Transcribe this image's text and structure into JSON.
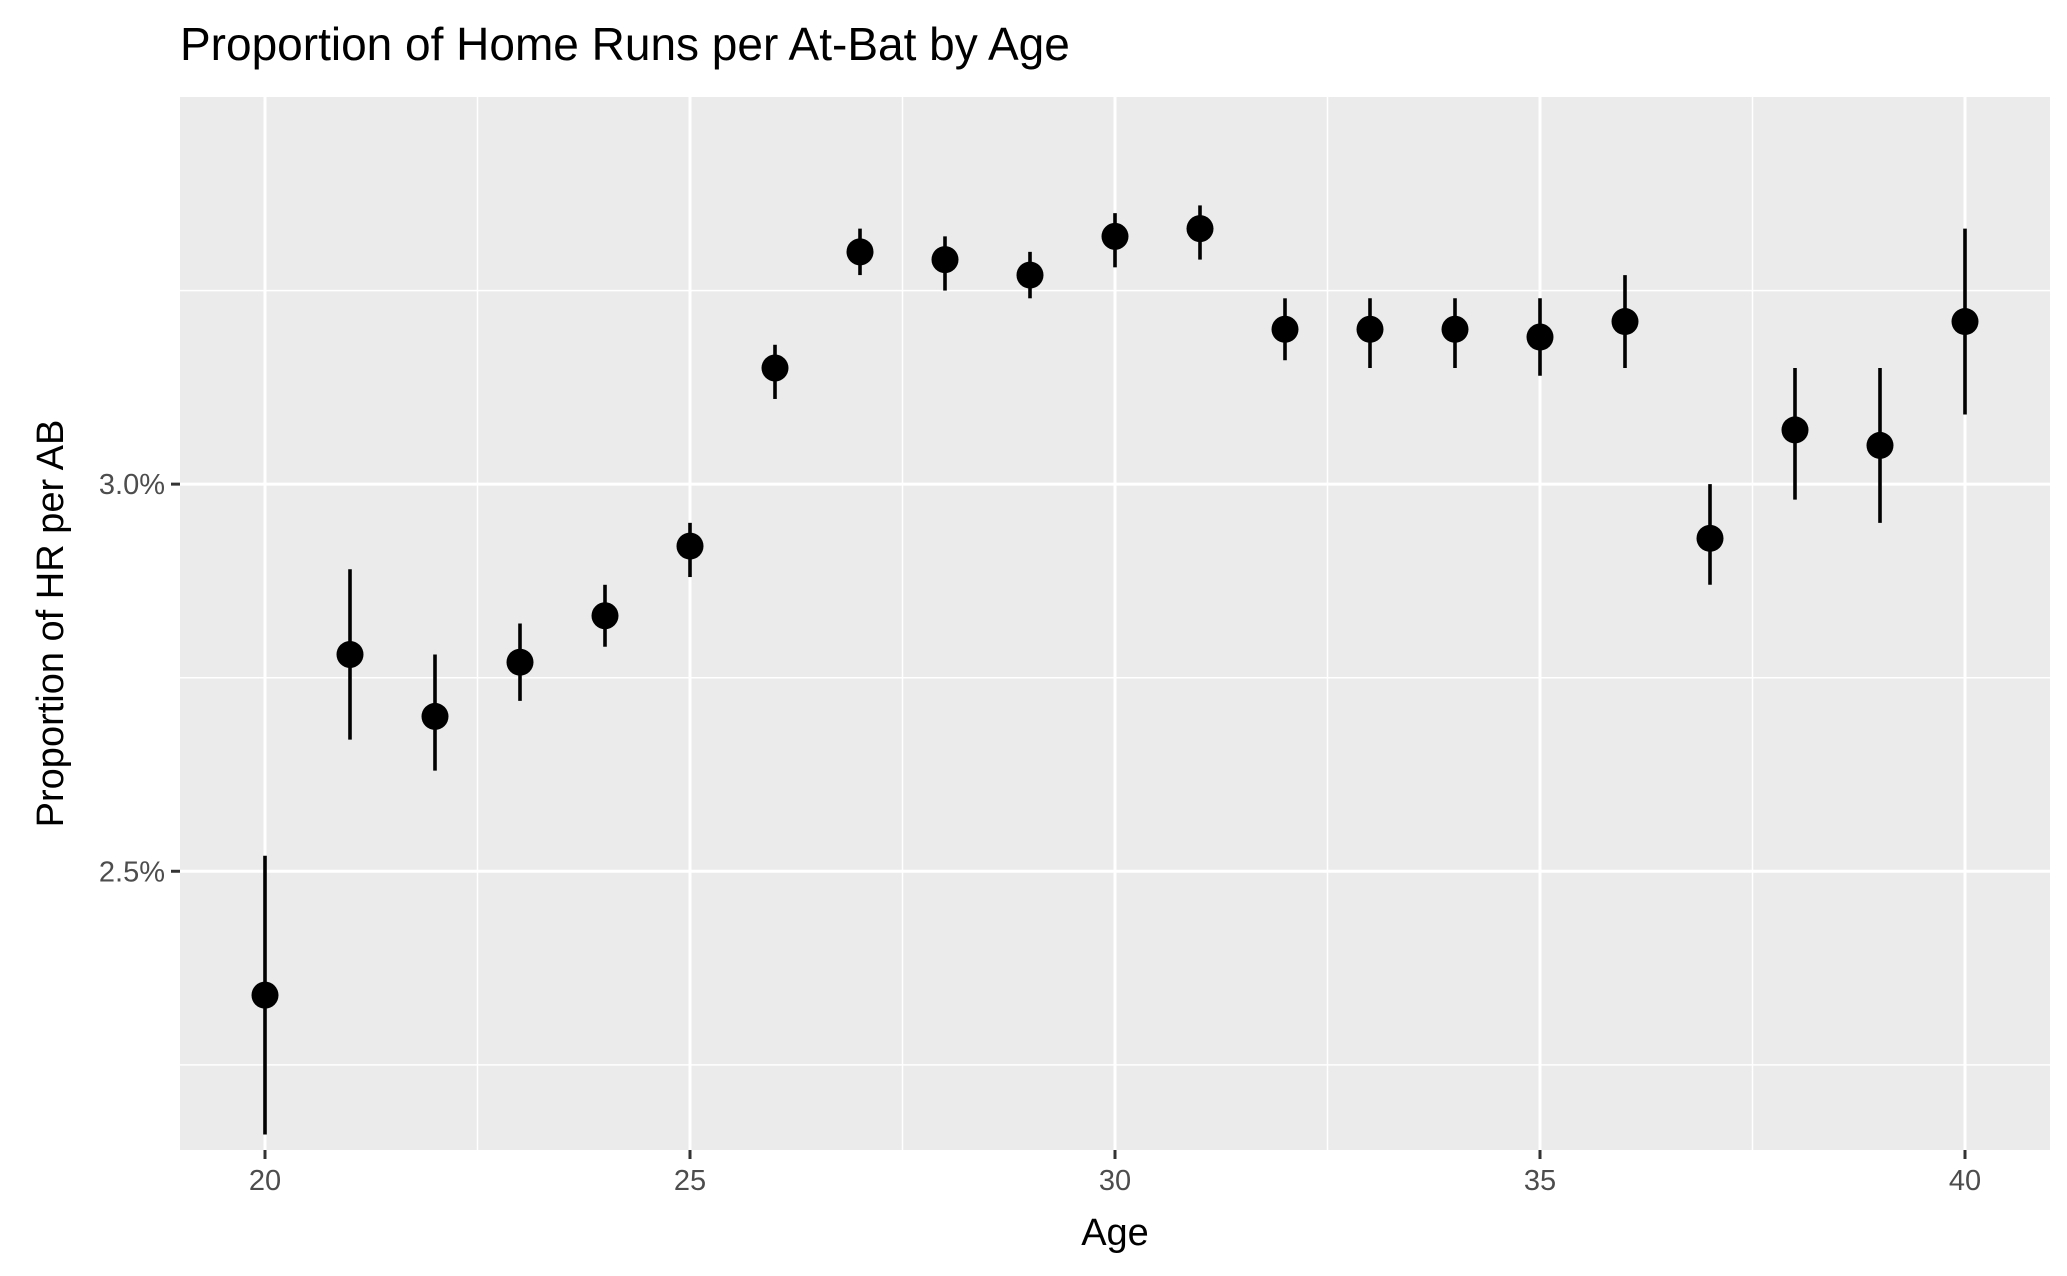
{
  "chart_data": {
    "type": "scatter",
    "title": "Proportion of Home Runs per At-Bat by Age",
    "xlabel": "Age",
    "ylabel": "Proportion of HR per AB",
    "xlim": [
      19,
      41
    ],
    "ylim": [
      2.14,
      3.5
    ],
    "x_ticks": [
      20,
      25,
      30,
      35,
      40
    ],
    "x_tick_labels": [
      "20",
      "25",
      "30",
      "35",
      "40"
    ],
    "y_ticks": [
      2.5,
      3.0
    ],
    "y_tick_labels": [
      "2.5%",
      "3.0%"
    ],
    "grid": true,
    "legend": "none",
    "point_color": "#000000",
    "panel_color": "#ebebeb",
    "points": [
      {
        "x": 20,
        "y": 2.34,
        "lower": 2.16,
        "upper": 2.52
      },
      {
        "x": 21,
        "y": 2.78,
        "lower": 2.67,
        "upper": 2.89
      },
      {
        "x": 22,
        "y": 2.7,
        "lower": 2.63,
        "upper": 2.78
      },
      {
        "x": 23,
        "y": 2.77,
        "lower": 2.72,
        "upper": 2.82
      },
      {
        "x": 24,
        "y": 2.83,
        "lower": 2.79,
        "upper": 2.87
      },
      {
        "x": 25,
        "y": 2.92,
        "lower": 2.88,
        "upper": 2.95
      },
      {
        "x": 26,
        "y": 3.15,
        "lower": 3.11,
        "upper": 3.18
      },
      {
        "x": 27,
        "y": 3.3,
        "lower": 3.27,
        "upper": 3.33
      },
      {
        "x": 28,
        "y": 3.29,
        "lower": 3.25,
        "upper": 3.32
      },
      {
        "x": 29,
        "y": 3.27,
        "lower": 3.24,
        "upper": 3.3
      },
      {
        "x": 30,
        "y": 3.32,
        "lower": 3.28,
        "upper": 3.35
      },
      {
        "x": 31,
        "y": 3.33,
        "lower": 3.29,
        "upper": 3.36
      },
      {
        "x": 32,
        "y": 3.2,
        "lower": 3.16,
        "upper": 3.24
      },
      {
        "x": 33,
        "y": 3.2,
        "lower": 3.15,
        "upper": 3.24
      },
      {
        "x": 34,
        "y": 3.2,
        "lower": 3.15,
        "upper": 3.24
      },
      {
        "x": 35,
        "y": 3.19,
        "lower": 3.14,
        "upper": 3.24
      },
      {
        "x": 36,
        "y": 3.21,
        "lower": 3.15,
        "upper": 3.27
      },
      {
        "x": 37,
        "y": 2.93,
        "lower": 2.87,
        "upper": 3.0
      },
      {
        "x": 38,
        "y": 3.07,
        "lower": 2.98,
        "upper": 3.15
      },
      {
        "x": 39,
        "y": 3.05,
        "lower": 2.95,
        "upper": 3.15
      },
      {
        "x": 40,
        "y": 3.21,
        "lower": 3.09,
        "upper": 3.33
      }
    ]
  }
}
